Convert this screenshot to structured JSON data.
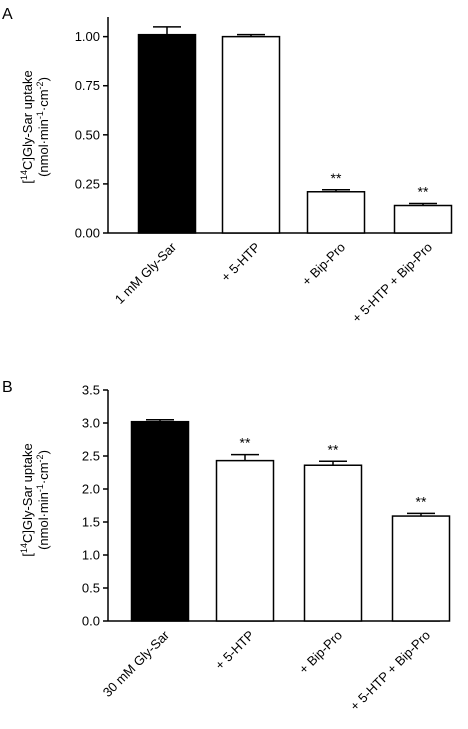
{
  "chart_data": [
    {
      "type": "bar",
      "panel_label": "A",
      "categories": [
        "1 mM Gly-Sar",
        "+ 5-HTP",
        "+ Bip-Pro",
        "+ 5-HTP + Bip-Pro"
      ],
      "values": [
        1.01,
        1.0,
        0.21,
        0.14
      ],
      "errors": [
        0.04,
        0.01,
        0.01,
        0.01
      ],
      "significance": [
        "",
        "",
        "**",
        "**"
      ],
      "fills": [
        "#000000",
        "#ffffff",
        "#ffffff",
        "#ffffff"
      ],
      "ylim": [
        0,
        1.1
      ],
      "yticks": [
        "0.00",
        "0.25",
        "0.50",
        "0.75",
        "1.00"
      ],
      "ytick_values": [
        0,
        0.25,
        0.5,
        0.75,
        1.0
      ],
      "ylabel_line1": {
        "pre": "[",
        "sup": "14",
        "post": "C]Gly-Sar uptake"
      },
      "ylabel_line2": {
        "a": "(nmol·min",
        "s1": "-1",
        "b": "·cm",
        "s2": "-2",
        "c": ")"
      }
    },
    {
      "type": "bar",
      "panel_label": "B",
      "categories": [
        "30 mM Gly-Sar",
        "+ 5-HTP",
        "+ Bip-Pro",
        "+ 5-HTP + Bip-Pro"
      ],
      "values": [
        3.02,
        2.43,
        2.36,
        1.59
      ],
      "errors": [
        0.03,
        0.09,
        0.06,
        0.04
      ],
      "significance": [
        "",
        "**",
        "**",
        "**"
      ],
      "fills": [
        "#000000",
        "#ffffff",
        "#ffffff",
        "#ffffff"
      ],
      "ylim": [
        0,
        3.5
      ],
      "yticks": [
        "0.0",
        "0.5",
        "1.0",
        "1.5",
        "2.0",
        "2.5",
        "3.0",
        "3.5"
      ],
      "ytick_values": [
        0,
        0.5,
        1.0,
        1.5,
        2.0,
        2.5,
        3.0,
        3.5
      ],
      "ylabel_line1": {
        "pre": "[",
        "sup": "14",
        "post": "C]Gly-Sar uptake"
      },
      "ylabel_line2": {
        "a": "(nmol·min",
        "s1": "-1",
        "b": "·cm",
        "s2": "-2",
        "c": ")"
      }
    }
  ]
}
